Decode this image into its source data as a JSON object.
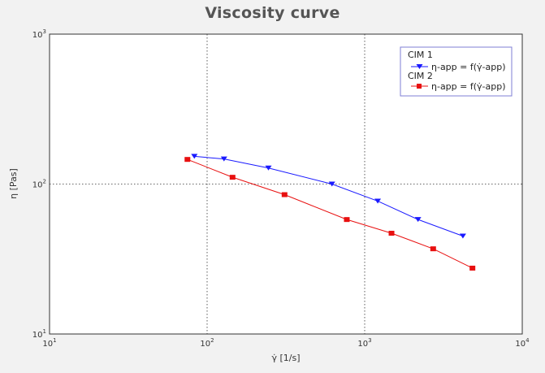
{
  "chart_data": {
    "type": "line",
    "title": "Viscosity curve",
    "xlabel": "γ̇ [1/s]",
    "ylabel": "η [Pas]",
    "x_scale": "log",
    "y_scale": "log",
    "xlim": [
      10,
      10000
    ],
    "ylim": [
      10,
      1000
    ],
    "x_ticks": [
      {
        "label": "10",
        "exp": "1"
      },
      {
        "label": "10",
        "exp": "2"
      },
      {
        "label": "10",
        "exp": "3"
      },
      {
        "label": "10",
        "exp": "4"
      }
    ],
    "y_ticks": [
      {
        "label": "10",
        "exp": "1"
      },
      {
        "label": "10",
        "exp": "2"
      },
      {
        "label": "10",
        "exp": "3"
      }
    ],
    "grid": "major, dotted",
    "legend_position": "top-right",
    "series": [
      {
        "group": "CIM 1",
        "name": "η-app = f(γ̇-app)",
        "color": "#1a1aff",
        "marker": "triangle-down",
        "points": [
          [
            83,
            153
          ],
          [
            128,
            147
          ],
          [
            245,
            128
          ],
          [
            620,
            100
          ],
          [
            1210,
            77
          ],
          [
            2180,
            58
          ],
          [
            4200,
            45
          ]
        ]
      },
      {
        "group": "CIM 2",
        "name": "η-app = f(γ̇-app)",
        "color": "#e81010",
        "marker": "square",
        "points": [
          [
            75,
            146
          ],
          [
            145,
            111
          ],
          [
            310,
            85
          ],
          [
            770,
            58
          ],
          [
            1480,
            47
          ],
          [
            2720,
            37
          ],
          [
            4830,
            27.5
          ]
        ]
      }
    ]
  }
}
